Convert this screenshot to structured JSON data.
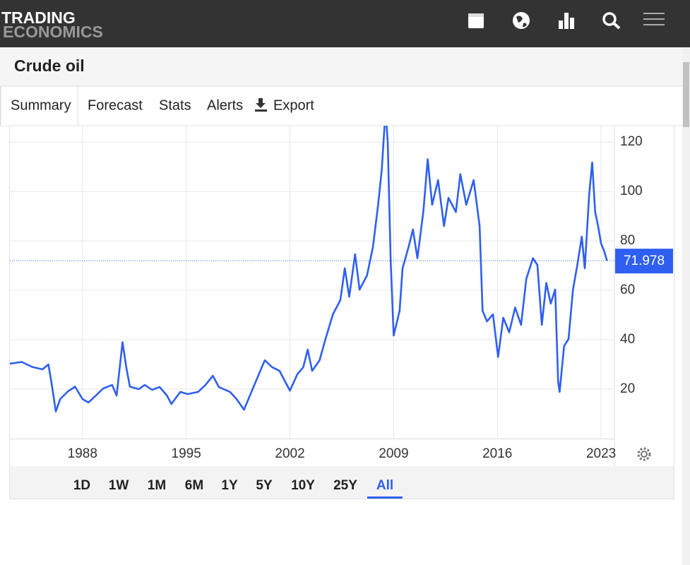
{
  "header": {
    "logo_top": "TRADING",
    "logo_bottom": "ECONOMICS"
  },
  "page_title": "Crude oil",
  "tabs": [
    "Summary",
    "Forecast",
    "Stats",
    "Alerts",
    "Export"
  ],
  "chart_data": {
    "type": "line",
    "color": "#2f5ff0",
    "x": [
      1983.1,
      1983.9,
      1984.6,
      1985.3,
      1985.7,
      1985.9,
      1986.2,
      1986.5,
      1987.0,
      1987.5,
      1988.0,
      1988.4,
      1988.9,
      1989.4,
      1990.0,
      1990.3,
      1990.7,
      1990.95,
      1991.2,
      1991.8,
      1992.2,
      1992.7,
      1993.2,
      1993.7,
      1994.0,
      1994.6,
      1995.1,
      1995.8,
      1996.3,
      1996.8,
      1997.2,
      1997.95,
      1998.4,
      1998.9,
      1999.4,
      1999.9,
      2000.3,
      2000.8,
      2001.3,
      2001.8,
      2002.0,
      2002.5,
      2002.9,
      2003.2,
      2003.5,
      2004.0,
      2004.4,
      2004.9,
      2005.4,
      2005.7,
      2006.0,
      2006.4,
      2006.7,
      2007.2,
      2007.6,
      2007.95,
      2008.2,
      2008.45,
      2008.6,
      2008.8,
      2009.0,
      2009.4,
      2009.6,
      2010.0,
      2010.3,
      2010.6,
      2011.0,
      2011.3,
      2011.6,
      2012.0,
      2012.4,
      2012.7,
      2013.2,
      2013.5,
      2013.9,
      2014.4,
      2014.8,
      2015.0,
      2015.3,
      2015.7,
      2016.05,
      2016.4,
      2016.8,
      2017.2,
      2017.6,
      2017.95,
      2018.4,
      2018.7,
      2019.0,
      2019.3,
      2019.6,
      2019.9,
      2020.1,
      2020.2,
      2020.5,
      2020.8,
      2021.1,
      2021.4,
      2021.7,
      2021.9,
      2022.2,
      2022.4,
      2022.6,
      2022.8,
      2023.0,
      2023.2,
      2023.4
    ],
    "values": [
      30.3,
      31,
      29,
      28,
      30,
      23,
      11,
      16,
      19,
      21,
      16,
      14.6,
      17.4,
      20.3,
      21.7,
      17.4,
      39,
      29,
      21,
      20,
      21.7,
      19.7,
      20.9,
      17.4,
      14,
      18.9,
      18,
      18.9,
      21.7,
      25.4,
      20.9,
      18.9,
      16,
      11.7,
      18.9,
      26,
      31.7,
      28.9,
      27.4,
      21.7,
      19.4,
      26,
      28.9,
      36,
      27.4,
      31.7,
      40.3,
      50.3,
      56,
      68.9,
      57.4,
      74.6,
      60.3,
      66,
      77.4,
      94.6,
      108.9,
      133,
      120,
      71.7,
      41.7,
      51.7,
      68.9,
      77.4,
      84.6,
      73,
      91.7,
      113,
      94.6,
      104.6,
      86,
      97.4,
      91.7,
      107,
      94.6,
      104.6,
      86,
      51.7,
      47.4,
      50.3,
      33,
      48.9,
      43,
      53,
      46,
      64.6,
      73,
      70.3,
      46,
      63,
      54.6,
      60.3,
      23,
      18.9,
      37.4,
      40.3,
      60.3,
      70.3,
      81.7,
      68.9,
      98.9,
      111.7,
      91.7,
      86,
      78.9,
      76,
      71.978
    ],
    "last_value": 71.978,
    "xlim": [
      1983.1,
      2023.9
    ],
    "ylim": [
      0,
      126.6
    ],
    "xticks": [
      1988,
      1995,
      2002,
      2009,
      2016,
      2023
    ],
    "yticks": [
      20,
      40,
      60,
      80,
      100,
      120
    ],
    "grid": true
  },
  "range_buttons": [
    "1D",
    "1W",
    "1M",
    "6M",
    "1Y",
    "5Y",
    "10Y",
    "25Y",
    "All"
  ],
  "active_range": 8
}
